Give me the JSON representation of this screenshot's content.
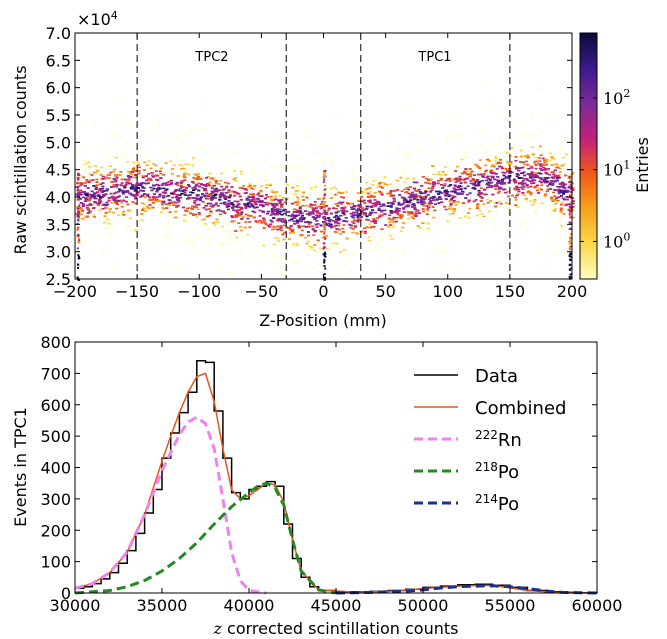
{
  "chart_data": [
    {
      "type": "heatmap",
      "xlabel": "Z-Position (mm)",
      "ylabel": "Raw scintillation counts",
      "ylabel_multiplier": "×10",
      "ylabel_multiplier_exp": "4",
      "xlim": [
        -200,
        200
      ],
      "ylim": [
        2.5,
        7.0
      ],
      "x_ticks": [
        "−200",
        "−150",
        "−100",
        "−50",
        "0",
        "50",
        "100",
        "150",
        "200"
      ],
      "x_tick_values": [
        -200,
        -150,
        -100,
        -50,
        0,
        50,
        100,
        150,
        200
      ],
      "y_ticks": [
        "2.5",
        "3.0",
        "3.5",
        "4.0",
        "4.5",
        "5.0",
        "5.5",
        "6.0",
        "6.5",
        "7.0"
      ],
      "y_tick_values": [
        2.5,
        3.0,
        3.5,
        4.0,
        4.5,
        5.0,
        5.5,
        6.0,
        6.5,
        7.0
      ],
      "regions": [
        {
          "label": "TPC2",
          "center": -90
        },
        {
          "label": "TPC1",
          "center": 90
        }
      ],
      "dashed_lines_x": [
        -150,
        -30,
        30,
        150
      ],
      "band_profile": {
        "z": [
          -200,
          -150,
          -100,
          -50,
          -25,
          0,
          25,
          50,
          100,
          150,
          175,
          200
        ],
        "center": [
          4.0,
          4.2,
          4.05,
          3.8,
          3.65,
          3.6,
          3.7,
          3.85,
          4.1,
          4.35,
          4.4,
          4.0
        ]
      },
      "colorbar": {
        "label": "Entries",
        "scale": "log",
        "ticks": [
          "10",
          "10",
          "10"
        ],
        "tick_exponents": [
          "0",
          "1",
          "2"
        ],
        "tick_values": [
          1,
          10,
          100
        ],
        "range": [
          0.3,
          800
        ],
        "colors": [
          "#ffffc0",
          "#fdd84a",
          "#f6a21c",
          "#ef5a1a",
          "#c2207a",
          "#7a2b9a",
          "#3a1a8a",
          "#0a0a3a"
        ]
      }
    },
    {
      "type": "line",
      "xlabel_italic": "z",
      "xlabel": " corrected scintillation counts",
      "ylabel": "Events in TPC1",
      "xlim": [
        30000,
        60000
      ],
      "ylim": [
        0,
        800
      ],
      "x_ticks": [
        "30000",
        "35000",
        "40000",
        "45000",
        "50000",
        "55000",
        "60000"
      ],
      "x_tick_values": [
        30000,
        35000,
        40000,
        45000,
        50000,
        55000,
        60000
      ],
      "y_ticks": [
        "0",
        "100",
        "200",
        "300",
        "400",
        "500",
        "600",
        "700",
        "800"
      ],
      "y_tick_values": [
        0,
        100,
        200,
        300,
        400,
        500,
        600,
        700,
        800
      ],
      "legend_position": "upper-right",
      "series": [
        {
          "name": "Data",
          "style": "step",
          "color": "#000000",
          "x": [
            30000,
            30500,
            31000,
            31500,
            32000,
            32500,
            33000,
            33500,
            34000,
            34500,
            35000,
            35500,
            36000,
            36500,
            37000,
            37500,
            38000,
            38500,
            39000,
            39500,
            40000,
            40500,
            41000,
            41500,
            42000,
            42500,
            43000,
            43500,
            44000,
            45000,
            46000,
            47000,
            48000,
            49000,
            50000,
            51000,
            52000,
            53000,
            54000,
            55000,
            56000,
            57000,
            58000,
            59000,
            60000
          ],
          "y": [
            15,
            20,
            30,
            45,
            65,
            95,
            135,
            190,
            255,
            330,
            430,
            510,
            575,
            640,
            740,
            735,
            580,
            430,
            320,
            300,
            330,
            340,
            355,
            340,
            220,
            110,
            50,
            20,
            8,
            4,
            4,
            5,
            8,
            12,
            18,
            22,
            26,
            28,
            25,
            18,
            8,
            4,
            2,
            1,
            0
          ]
        },
        {
          "name": "Combined",
          "style": "line",
          "color": "#e8541a",
          "x": [
            30000,
            31000,
            32000,
            33000,
            34000,
            35000,
            35500,
            36000,
            36500,
            37000,
            37500,
            38000,
            38500,
            39000,
            39500,
            40000,
            40500,
            41000,
            41500,
            42000,
            42500,
            43000,
            44000,
            46000,
            48000,
            50000,
            52000,
            53000,
            54000,
            55000,
            56000,
            58000,
            60000
          ],
          "y": [
            15,
            30,
            65,
            130,
            250,
            420,
            500,
            575,
            640,
            690,
            700,
            610,
            460,
            330,
            300,
            310,
            330,
            350,
            345,
            290,
            170,
            70,
            10,
            3,
            5,
            14,
            22,
            24,
            24,
            17,
            8,
            1,
            0
          ]
        },
        {
          "name": "Rn",
          "name_superscript": "222",
          "style": "dashed",
          "color": "#ee82ee",
          "x": [
            30000,
            31000,
            32000,
            33000,
            34000,
            35000,
            36000,
            36500,
            37000,
            37500,
            38000,
            38500,
            39000,
            39500,
            40000,
            41000
          ],
          "y": [
            15,
            30,
            65,
            130,
            250,
            390,
            505,
            545,
            560,
            540,
            460,
            300,
            130,
            40,
            8,
            0
          ]
        },
        {
          "name": "Po",
          "name_superscript": "218",
          "style": "dashed",
          "color": "#228b22",
          "x": [
            30000,
            32000,
            33000,
            34000,
            35000,
            36000,
            37000,
            38000,
            39000,
            40000,
            40500,
            41000,
            41500,
            42000,
            42500,
            43000,
            44000,
            45000
          ],
          "y": [
            0,
            8,
            20,
            40,
            70,
            110,
            160,
            220,
            275,
            320,
            340,
            350,
            335,
            280,
            170,
            70,
            10,
            0
          ]
        },
        {
          "name": "Po",
          "name_superscript": "214",
          "style": "dashed",
          "color": "#1f2f8f",
          "x": [
            45000,
            47000,
            49000,
            50000,
            51000,
            52000,
            53000,
            54000,
            55000,
            56000,
            57000,
            58000,
            60000
          ],
          "y": [
            0,
            2,
            6,
            10,
            16,
            20,
            22,
            23,
            20,
            14,
            7,
            2,
            0
          ]
        }
      ]
    }
  ]
}
